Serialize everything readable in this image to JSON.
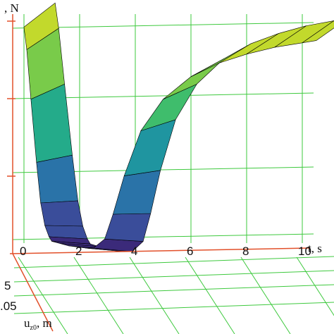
{
  "chart_data": {
    "type": "surface",
    "title": "",
    "xlabel": "t, s",
    "ylabel": "u",
    "ylabel_sub": "z0",
    "ylabel_unit": ", m",
    "zlabel": ", N",
    "x_ticks": [
      "0",
      "2",
      "4",
      "6",
      "8",
      "10"
    ],
    "y_ticks": [
      "5",
      ".05"
    ],
    "x_range": [
      0,
      10.5
    ],
    "grid": true,
    "series": [
      {
        "values_normalized_height": [
          [
            0,
            0.98
          ],
          [
            0.1,
            0.88
          ],
          [
            0.25,
            0.66
          ],
          [
            0.45,
            0.38
          ],
          [
            0.6,
            0.2
          ],
          [
            0.75,
            0.1
          ],
          [
            0.9,
            0.05
          ],
          [
            1.0,
            0.03
          ],
          [
            1.3,
            0.02
          ],
          [
            1.6,
            0.01
          ],
          [
            2.2,
            0.0
          ],
          [
            2.5,
            0.0
          ],
          [
            2.9,
            0.04
          ],
          [
            3.2,
            0.15
          ],
          [
            3.6,
            0.32
          ],
          [
            4.2,
            0.52
          ],
          [
            5.0,
            0.66
          ],
          [
            6.0,
            0.76
          ],
          [
            7.0,
            0.82
          ],
          [
            8.0,
            0.86
          ],
          [
            9.0,
            0.89
          ],
          [
            10.0,
            0.91
          ],
          [
            10.5,
            0.92
          ]
        ]
      }
    ],
    "colormap": [
      "#3b2a7a",
      "#3a4d9a",
      "#2a73a8",
      "#1f95a0",
      "#24ab8a",
      "#3fbd6c",
      "#79cb4a",
      "#c2d92c",
      "#e8e31e"
    ]
  }
}
